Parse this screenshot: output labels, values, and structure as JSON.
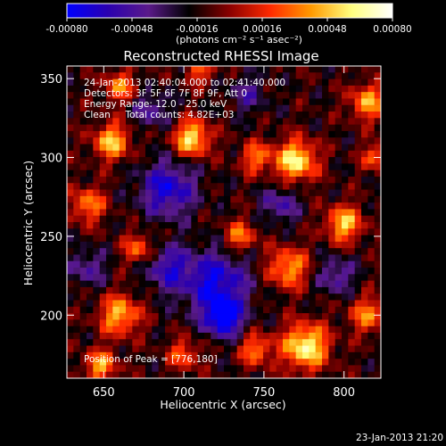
{
  "colorbar": {
    "tick_labels": [
      "-0.00080",
      "-0.00048",
      "-0.00016",
      "0.00016",
      "0.00048",
      "0.00080"
    ],
    "tick_values": [
      -0.0008,
      -0.00048,
      -0.00016,
      0.00016,
      0.00048,
      0.0008
    ],
    "range": [
      -0.0008,
      0.0008
    ],
    "unit_label": "(photons cm⁻² s⁻¹ asec⁻²)",
    "colors": [
      "#0000ff",
      "#2a00b0",
      "#5a1a8a",
      "#000000",
      "#8a0000",
      "#ff2a00",
      "#ff9a00",
      "#ffff80",
      "#ffffff"
    ]
  },
  "chart_data": {
    "type": "heatmap",
    "title": "Reconstructed RHESSI Image",
    "xlabel": "Heliocentric X (arcsec)",
    "ylabel": "Heliocentric Y (arcsec)",
    "xlim": [
      627,
      823
    ],
    "ylim": [
      160,
      358
    ],
    "x_ticks": [
      650,
      700,
      750,
      800
    ],
    "y_ticks": [
      200,
      250,
      300,
      350
    ],
    "grid_size": [
      48,
      48
    ],
    "annotations": [
      "24-Jan-2013 02:40:04.000 to 02:41:40.000",
      "Detectors: 3F 5F 6F 7F 8F 9F, Att 0",
      "Energy Range: 12.0 - 25.0 keV",
      "Clean     Total counts: 4.82E+03"
    ],
    "peak_label": "Position of Peak = [776,180]",
    "peak": [
      776,
      180
    ],
    "blobs": [
      {
        "x": 776,
        "y": 180,
        "v": 1.0,
        "s": 10
      },
      {
        "x": 705,
        "y": 312,
        "v": 0.9,
        "s": 8
      },
      {
        "x": 770,
        "y": 298,
        "v": 0.95,
        "s": 9
      },
      {
        "x": 655,
        "y": 310,
        "v": 0.8,
        "s": 8
      },
      {
        "x": 640,
        "y": 270,
        "v": 0.6,
        "s": 8
      },
      {
        "x": 660,
        "y": 200,
        "v": 0.75,
        "s": 9
      },
      {
        "x": 648,
        "y": 168,
        "v": 0.7,
        "s": 7
      },
      {
        "x": 800,
        "y": 258,
        "v": 0.8,
        "s": 8
      },
      {
        "x": 815,
        "y": 335,
        "v": 0.7,
        "s": 8
      },
      {
        "x": 745,
        "y": 300,
        "v": 0.55,
        "s": 7
      },
      {
        "x": 735,
        "y": 250,
        "v": 0.6,
        "s": 7
      },
      {
        "x": 765,
        "y": 230,
        "v": 0.7,
        "s": 9
      },
      {
        "x": 700,
        "y": 175,
        "v": 0.5,
        "s": 7
      },
      {
        "x": 745,
        "y": 178,
        "v": 0.6,
        "s": 7
      },
      {
        "x": 815,
        "y": 200,
        "v": 0.6,
        "s": 8
      },
      {
        "x": 820,
        "y": 300,
        "v": 0.55,
        "s": 6
      },
      {
        "x": 672,
        "y": 242,
        "v": 0.55,
        "s": 7
      },
      {
        "x": 660,
        "y": 345,
        "v": 0.6,
        "s": 7
      },
      {
        "x": 710,
        "y": 355,
        "v": 0.5,
        "s": 6
      },
      {
        "x": 690,
        "y": 280,
        "v": -0.7,
        "s": 12
      },
      {
        "x": 720,
        "y": 220,
        "v": -0.75,
        "s": 14
      },
      {
        "x": 725,
        "y": 198,
        "v": -0.85,
        "s": 8
      },
      {
        "x": 690,
        "y": 230,
        "v": -0.55,
        "s": 10
      },
      {
        "x": 760,
        "y": 270,
        "v": -0.45,
        "s": 8
      },
      {
        "x": 795,
        "y": 225,
        "v": -0.45,
        "s": 8
      },
      {
        "x": 680,
        "y": 330,
        "v": -0.4,
        "s": 8
      },
      {
        "x": 740,
        "y": 340,
        "v": -0.35,
        "s": 8
      },
      {
        "x": 640,
        "y": 230,
        "v": -0.4,
        "s": 8
      }
    ]
  },
  "footer_timestamp": "23-Jan-2013 21:20"
}
